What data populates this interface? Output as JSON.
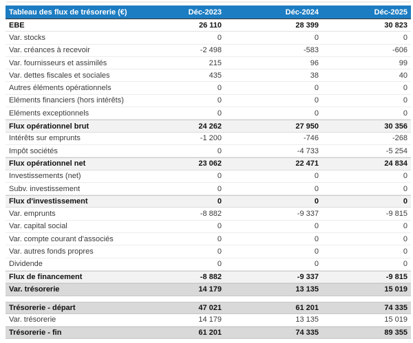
{
  "table": {
    "title": "Tableau des flux de trésorerie (€)",
    "columns": [
      "Déc-2023",
      "Déc-2024",
      "Déc-2025"
    ],
    "colors": {
      "header_bg": "#1d7dc2",
      "header_text": "#ffffff",
      "subtotal_bg": "#f2f2f2",
      "highlight_bg": "#d9d9d9"
    },
    "rows": [
      {
        "label": "EBE",
        "values": [
          "26 110",
          "28 399",
          "30 823"
        ],
        "style": "bold"
      },
      {
        "label": "Var. stocks",
        "values": [
          "0",
          "0",
          "0"
        ],
        "style": "normal"
      },
      {
        "label": "Var. créances à recevoir",
        "values": [
          "-2 498",
          "-583",
          "-606"
        ],
        "style": "normal"
      },
      {
        "label": "Var. fournisseurs et assimilés",
        "values": [
          "215",
          "96",
          "99"
        ],
        "style": "normal"
      },
      {
        "label": "Var. dettes fiscales et sociales",
        "values": [
          "435",
          "38",
          "40"
        ],
        "style": "normal"
      },
      {
        "label": "Autres éléments opérationnels",
        "values": [
          "0",
          "0",
          "0"
        ],
        "style": "normal"
      },
      {
        "label": "Eléments financiers (hors intérêts)",
        "values": [
          "0",
          "0",
          "0"
        ],
        "style": "normal"
      },
      {
        "label": "Eléments exceptionnels",
        "values": [
          "0",
          "0",
          "0"
        ],
        "style": "normal"
      },
      {
        "label": "Flux opérationnel brut",
        "values": [
          "24 262",
          "27 950",
          "30 356"
        ],
        "style": "subtotal"
      },
      {
        "label": "Intérêts sur emprunts",
        "values": [
          "-1 200",
          "-746",
          "-268"
        ],
        "style": "normal"
      },
      {
        "label": "Impôt sociétés",
        "values": [
          "0",
          "-4 733",
          "-5 254"
        ],
        "style": "normal"
      },
      {
        "label": "Flux opérationnel net",
        "values": [
          "23 062",
          "22 471",
          "24 834"
        ],
        "style": "subtotal"
      },
      {
        "label": "Investissements (net)",
        "values": [
          "0",
          "0",
          "0"
        ],
        "style": "normal"
      },
      {
        "label": "Subv. investissement",
        "values": [
          "0",
          "0",
          "0"
        ],
        "style": "normal"
      },
      {
        "label": "Flux d'investissement",
        "values": [
          "0",
          "0",
          "0"
        ],
        "style": "subtotal"
      },
      {
        "label": "Var. emprunts",
        "values": [
          "-8 882",
          "-9 337",
          "-9 815"
        ],
        "style": "normal"
      },
      {
        "label": "Var. capital social",
        "values": [
          "0",
          "0",
          "0"
        ],
        "style": "normal"
      },
      {
        "label": "Var. compte courant d'associés",
        "values": [
          "0",
          "0",
          "0"
        ],
        "style": "normal"
      },
      {
        "label": "Var. autres fonds propres",
        "values": [
          "0",
          "0",
          "0"
        ],
        "style": "normal"
      },
      {
        "label": "Dividende",
        "values": [
          "0",
          "0",
          "0"
        ],
        "style": "normal"
      },
      {
        "label": "Flux de financement",
        "values": [
          "-8 882",
          "-9 337",
          "-9 815"
        ],
        "style": "subtotal"
      },
      {
        "label": "Var. trésorerie",
        "values": [
          "14 179",
          "13 135",
          "15 019"
        ],
        "style": "highlight"
      },
      {
        "label": "",
        "values": [],
        "style": "spacer"
      },
      {
        "label": "Trésorerie - départ",
        "values": [
          "47 021",
          "61 201",
          "74 335"
        ],
        "style": "highlight"
      },
      {
        "label": "Var. trésorerie",
        "values": [
          "14 179",
          "13 135",
          "15 019"
        ],
        "style": "normal"
      },
      {
        "label": "Trésorerie - fin",
        "values": [
          "61 201",
          "74 335",
          "89 355"
        ],
        "style": "highlight"
      }
    ]
  }
}
